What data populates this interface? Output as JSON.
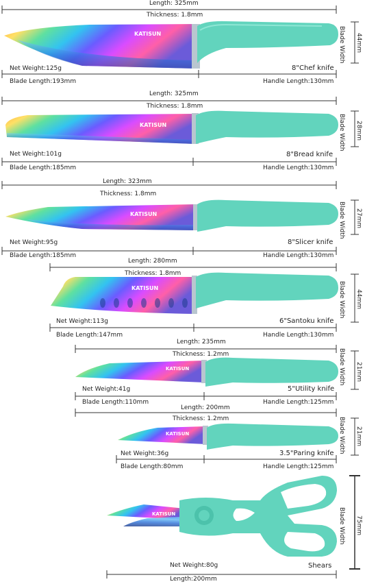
{
  "brand": "KATISUN",
  "colors": {
    "handle": "#62d4bd",
    "handle_dark": "#45b9a2",
    "line": "#333333"
  },
  "items": [
    {
      "length": "Length: 325mm",
      "thickness": "Thickness: 1.8mm",
      "net_weight": "Net Weight:125g",
      "name": "8\"Chef knife",
      "blade_length": "Blade Length:193mm",
      "handle_length": "Handle Length:130mm",
      "blade_width": "44mm",
      "blade_width_label": "Blade Width"
    },
    {
      "length": "Length: 325mm",
      "thickness": "Thickness: 1.8mm",
      "net_weight": "Net Weight:101g",
      "name": "8\"Bread knife",
      "blade_length": "Blade Length:185mm",
      "handle_length": "Handle Length:130mm",
      "blade_width": "28mm",
      "blade_width_label": "Blade Width"
    },
    {
      "length": "Length: 323mm",
      "thickness": "Thickness: 1.8mm",
      "net_weight": "Net Weight:95g",
      "name": "8\"Slicer knife",
      "blade_length": "Blade Length:185mm",
      "handle_length": "Handle Length:130mm",
      "blade_width": "27mm",
      "blade_width_label": "Blade Width"
    },
    {
      "length": "Length: 280mm",
      "thickness": "Thickness: 1.8mm",
      "net_weight": "Net Weight:113g",
      "name": "6\"Santoku knife",
      "blade_length": "Blade Length:147mm",
      "handle_length": "Handle Length:130mm",
      "blade_width": "44mm",
      "blade_width_label": "Blade Width"
    },
    {
      "length": "Length: 235mm",
      "thickness": "Thickness: 1.2mm",
      "net_weight": "Net Weight:41g",
      "name": "5\"Utility knife",
      "blade_length": "Blade Length:110mm",
      "handle_length": "Handle Length:125mm",
      "blade_width": "21mm",
      "blade_width_label": "Blade Width"
    },
    {
      "length": "Length: 200mm",
      "thickness": "Thickness: 1.2mm",
      "net_weight": "Net Weight:36g",
      "name": "3.5\"Paring knife",
      "blade_length": "Blade Length:80mm",
      "handle_length": "Handle Length:125mm",
      "blade_width": "21mm",
      "blade_width_label": "Blade Width"
    },
    {
      "net_weight": "Net Weight:80g",
      "name": "Shears",
      "length": "Length:200mm",
      "blade_width": "75mm",
      "blade_width_label": "Blade Width"
    }
  ]
}
